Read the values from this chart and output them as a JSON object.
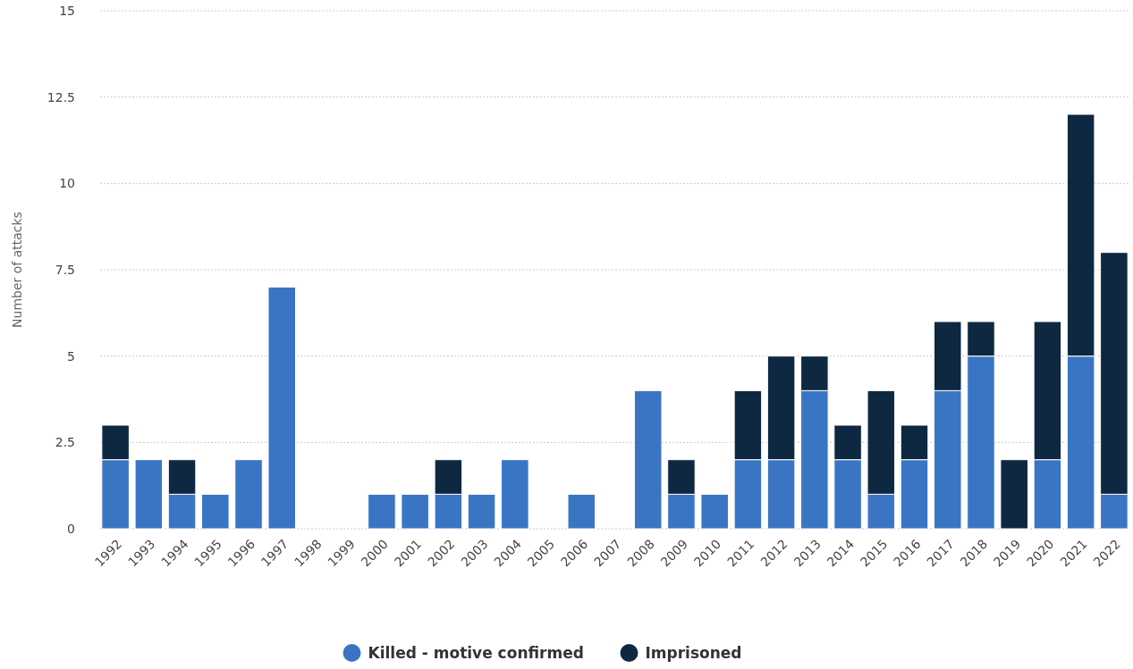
{
  "chart_data": {
    "type": "bar",
    "stacked": true,
    "ylabel": "Number of attacks",
    "categories": [
      "1992",
      "1993",
      "1994",
      "1995",
      "1996",
      "1997",
      "1998",
      "1999",
      "2000",
      "2001",
      "2002",
      "2003",
      "2004",
      "2005",
      "2006",
      "2007",
      "2008",
      "2009",
      "2010",
      "2011",
      "2012",
      "2013",
      "2014",
      "2015",
      "2016",
      "2017",
      "2018",
      "2019",
      "2020",
      "2021",
      "2022"
    ],
    "series": [
      {
        "name": "Killed - motive confirmed",
        "color": "#3a75c4",
        "values": [
          2,
          2,
          1,
          1,
          2,
          7,
          0,
          0,
          1,
          1,
          1,
          1,
          2,
          0,
          1,
          0,
          4,
          1,
          1,
          2,
          2,
          4,
          2,
          1,
          2,
          4,
          5,
          0,
          2,
          5,
          1
        ]
      },
      {
        "name": "Imprisoned",
        "color": "#0e2841",
        "values": [
          1,
          0,
          1,
          0,
          0,
          0,
          0,
          0,
          0,
          0,
          1,
          0,
          0,
          0,
          0,
          0,
          0,
          1,
          0,
          2,
          3,
          1,
          1,
          3,
          1,
          2,
          1,
          2,
          4,
          7,
          7
        ]
      }
    ],
    "ylim": [
      0,
      15
    ],
    "yticks": [
      0,
      2.5,
      5,
      7.5,
      10,
      12.5,
      15
    ],
    "grid": "y",
    "legend": "bottom"
  }
}
